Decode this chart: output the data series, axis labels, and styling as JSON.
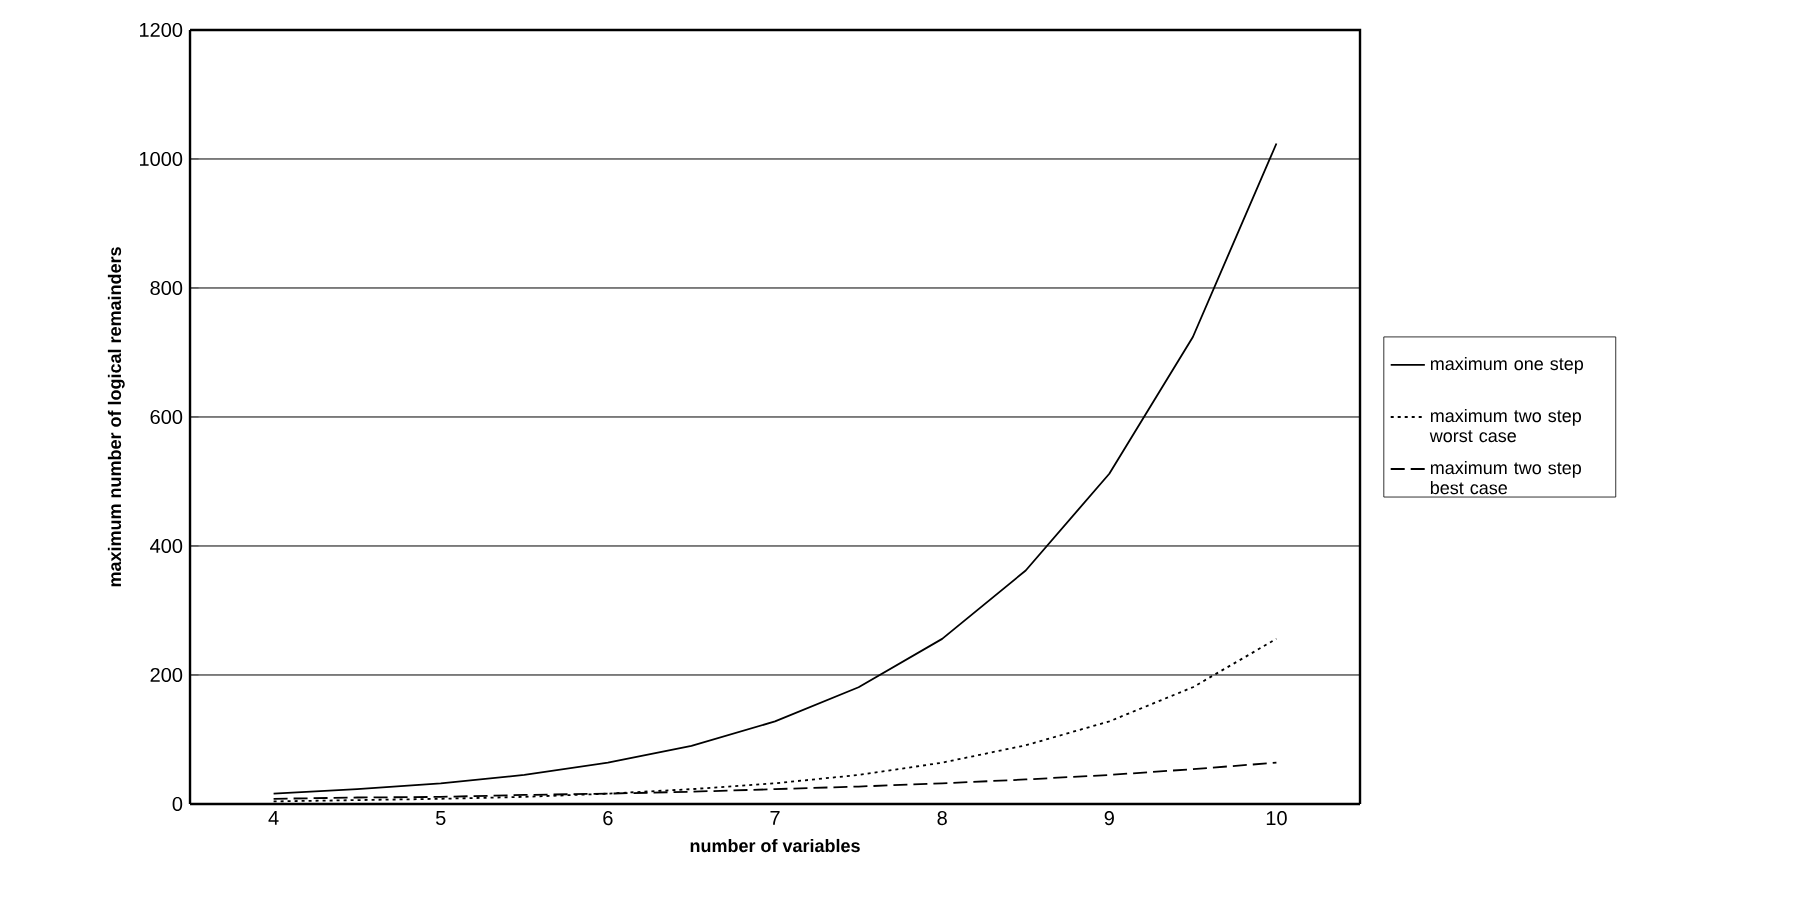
{
  "chart_data": {
    "type": "line",
    "xlabel": "number of variables",
    "ylabel": "maximum number of logical remainders",
    "categories": [
      "4",
      null,
      "5",
      null,
      "6",
      null,
      "7",
      null,
      "8",
      null,
      "9",
      null,
      "10"
    ],
    "series": [
      {
        "name": "maximum one step",
        "color": "#000000",
        "line_style": "solid",
        "values": [
          16,
          23,
          32,
          45,
          64,
          90,
          128,
          181,
          256,
          362,
          512,
          724,
          1024
        ]
      },
      {
        "name": "maximum two step worst case",
        "color": "#000000",
        "line_style": "dotted",
        "values": [
          4,
          6,
          8,
          11,
          16,
          23,
          32,
          45,
          64,
          91,
          128,
          181,
          256
        ]
      },
      {
        "name": "maximum two step best case",
        "color": "#000000",
        "line_style": "dashed",
        "values": [
          8,
          10,
          11,
          14,
          16,
          19,
          23,
          27,
          32,
          38,
          45,
          54,
          64
        ]
      }
    ],
    "ylim": [
      0,
      1200
    ],
    "yticks": [
      0,
      200,
      400,
      600,
      800,
      1000,
      1200
    ],
    "grid": "y",
    "legend": "right",
    "marker": "none"
  }
}
